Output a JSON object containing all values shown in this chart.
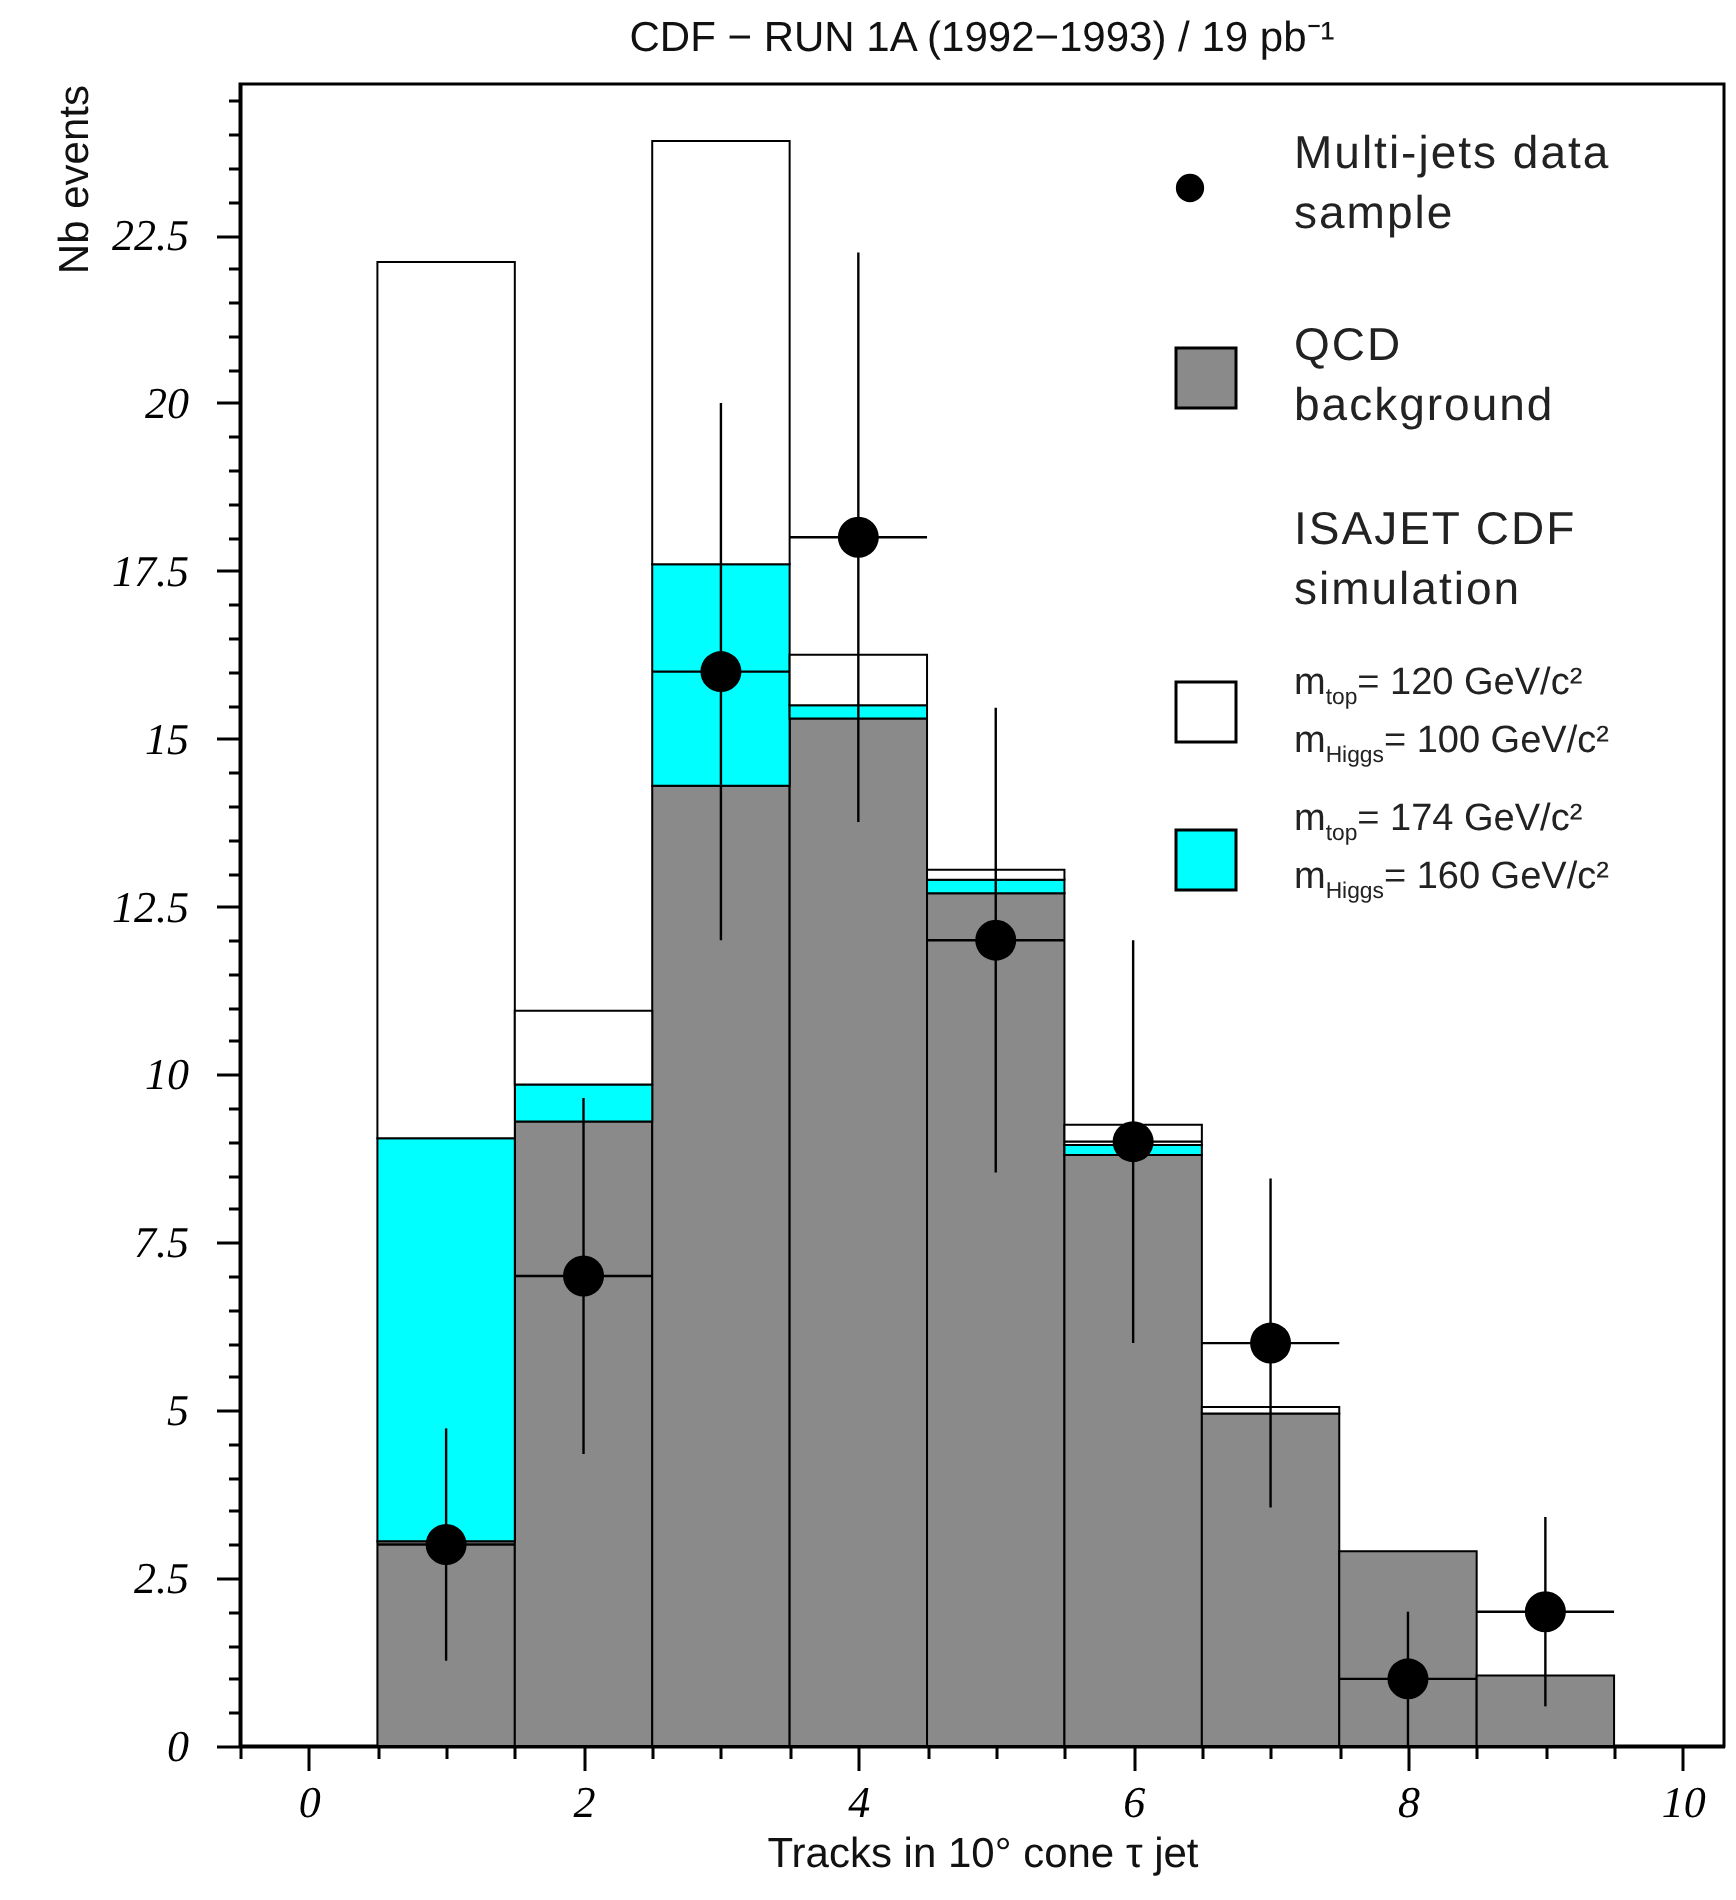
{
  "chart_data": {
    "type": "bar",
    "title": "CDF − RUN 1A (1992−1993) / 19 pb⁻¹",
    "xlabel": "Tracks in 10° cone τ jet",
    "ylabel": "Nb events",
    "legend_title": "ISAJET CDF simulation",
    "legend": "top right",
    "x": [
      1,
      2,
      3,
      4,
      5,
      6,
      7,
      8,
      9
    ],
    "stacked": true,
    "series": [
      {
        "name": "QCD background",
        "color": "#8a8a8a",
        "values": [
          3.05,
          9.3,
          14.3,
          15.3,
          12.7,
          8.8,
          4.95,
          2.9,
          1.05
        ]
      },
      {
        "name": "m$_{top}$= 174 GeV/c² m$_{Higgs}$= 160 GeV/c²",
        "color": "#00ffff",
        "values": [
          6.0,
          0.55,
          3.3,
          0.2,
          0.2,
          0.15,
          null,
          null,
          null
        ]
      },
      {
        "name": "m$_{top}$= 120 GeV/c² m$_{Higgs}$= 100 GeV/c²",
        "color": "#ffffff",
        "values": [
          13.05,
          1.1,
          6.3,
          0.75,
          0.15,
          0.3,
          0.1,
          null,
          null
        ]
      },
      {
        "name": "Multi-jets data sample",
        "type": "scatter",
        "color": "#000000",
        "x": [
          1,
          2,
          3,
          4,
          5,
          6,
          7,
          8,
          9
        ],
        "values": [
          3,
          7,
          16,
          18,
          12,
          9,
          6,
          1,
          2
        ],
        "errors": [
          1.73,
          2.65,
          4,
          4.24,
          3.46,
          3,
          2.45,
          1,
          1.41
        ],
        "xerrors": [
          0.5,
          0.5,
          0.5,
          0.5,
          0.5,
          0.5,
          0.5,
          0.5,
          0.5
        ],
        "marker": "circle"
      }
    ],
    "xlim": [
      -0.5,
      10.3
    ],
    "xticks": [
      {
        "value": -0.5,
        "label": null
      },
      0,
      {
        "value": 0.5,
        "label": null
      },
      {
        "value": 1,
        "label": null
      },
      {
        "value": 1.5,
        "label": null
      },
      2,
      {
        "value": 2.5,
        "label": null
      },
      {
        "value": 3,
        "label": null
      },
      {
        "value": 3.5,
        "label": null
      },
      4,
      {
        "value": 4.5,
        "label": null
      },
      {
        "value": 5,
        "label": null
      },
      {
        "value": 5.5,
        "label": null
      },
      6,
      {
        "value": 6.5,
        "label": null
      },
      {
        "value": 7,
        "label": null
      },
      {
        "value": 7.5,
        "label": null
      },
      8,
      {
        "value": 8.5,
        "label": null
      },
      {
        "value": 9,
        "label": null
      },
      {
        "value": 9.5,
        "label": null
      },
      10
    ],
    "ylim": [
      0,
      24.75
    ],
    "yticks": [
      0,
      {
        "value": 0.5,
        "label": null
      },
      {
        "value": 1,
        "label": null
      },
      {
        "value": 1.5,
        "label": null
      },
      {
        "value": 2,
        "label": null
      },
      2.5,
      {
        "value": 3,
        "label": null
      },
      {
        "value": 3.5,
        "label": null
      },
      {
        "value": 4,
        "label": null
      },
      {
        "value": 4.5,
        "label": null
      },
      5,
      {
        "value": 5.5,
        "label": null
      },
      {
        "value": 6,
        "label": null
      },
      {
        "value": 6.5,
        "label": null
      },
      {
        "value": 7,
        "label": null
      },
      7.5,
      {
        "value": 8,
        "label": null
      },
      {
        "value": 8.5,
        "label": null
      },
      {
        "value": 9,
        "label": null
      },
      {
        "value": 9.5,
        "label": null
      },
      10,
      {
        "value": 10.5,
        "label": null
      },
      {
        "value": 11,
        "label": null
      },
      {
        "value": 11.5,
        "label": null
      },
      {
        "value": 12,
        "label": null
      },
      12.5,
      {
        "value": 13,
        "label": null
      },
      {
        "value": 13.5,
        "label": null
      },
      {
        "value": 14,
        "label": null
      },
      {
        "value": 14.5,
        "label": null
      },
      15,
      {
        "value": 15.5,
        "label": null
      },
      {
        "value": 16,
        "label": null
      },
      {
        "value": 16.5,
        "label": null
      },
      {
        "value": 17,
        "label": null
      },
      17.5,
      {
        "value": 18,
        "label": null
      },
      {
        "value": 18.5,
        "label": null
      },
      {
        "value": 19,
        "label": null
      },
      {
        "value": 19.5,
        "label": null
      },
      20,
      {
        "value": 20.5,
        "label": null
      },
      {
        "value": 21,
        "label": null
      },
      {
        "value": 21.5,
        "label": null
      },
      {
        "value": 22,
        "label": null
      },
      22.5,
      {
        "value": 23,
        "label": null
      },
      {
        "value": 23.5,
        "label": null
      },
      {
        "value": 24,
        "label": null
      },
      {
        "value": 24.5,
        "label": null
      }
    ]
  }
}
